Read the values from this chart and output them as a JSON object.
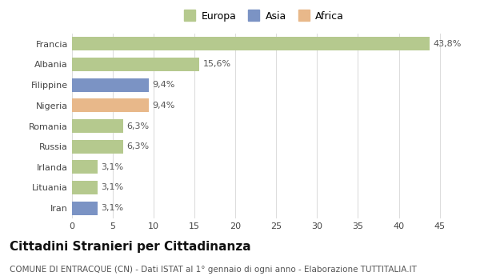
{
  "categories": [
    "Francia",
    "Albania",
    "Filippine",
    "Nigeria",
    "Romania",
    "Russia",
    "Irlanda",
    "Lituania",
    "Iran"
  ],
  "values": [
    43.8,
    15.6,
    9.4,
    9.4,
    6.3,
    6.3,
    3.1,
    3.1,
    3.1
  ],
  "labels": [
    "43,8%",
    "15,6%",
    "9,4%",
    "9,4%",
    "6,3%",
    "6,3%",
    "3,1%",
    "3,1%",
    "3,1%"
  ],
  "bar_colors": [
    "#b5c98e",
    "#b5c98e",
    "#7b93c4",
    "#e8b88a",
    "#b5c98e",
    "#b5c98e",
    "#b5c98e",
    "#b5c98e",
    "#7b93c4"
  ],
  "legend_labels": [
    "Europa",
    "Asia",
    "Africa"
  ],
  "legend_colors": [
    "#b5c98e",
    "#7b93c4",
    "#e8b88a"
  ],
  "xlim": [
    0,
    47
  ],
  "xticks": [
    0,
    5,
    10,
    15,
    20,
    25,
    30,
    35,
    40,
    45
  ],
  "title": "Cittadini Stranieri per Cittadinanza",
  "subtitle": "COMUNE DI ENTRACQUE (CN) - Dati ISTAT al 1° gennaio di ogni anno - Elaborazione TUTTITALIA.IT",
  "title_fontsize": 11,
  "subtitle_fontsize": 7.5,
  "label_fontsize": 8,
  "ytick_fontsize": 8,
  "xtick_fontsize": 8,
  "bg_color": "#ffffff",
  "grid_color": "#dddddd",
  "bar_height": 0.65
}
